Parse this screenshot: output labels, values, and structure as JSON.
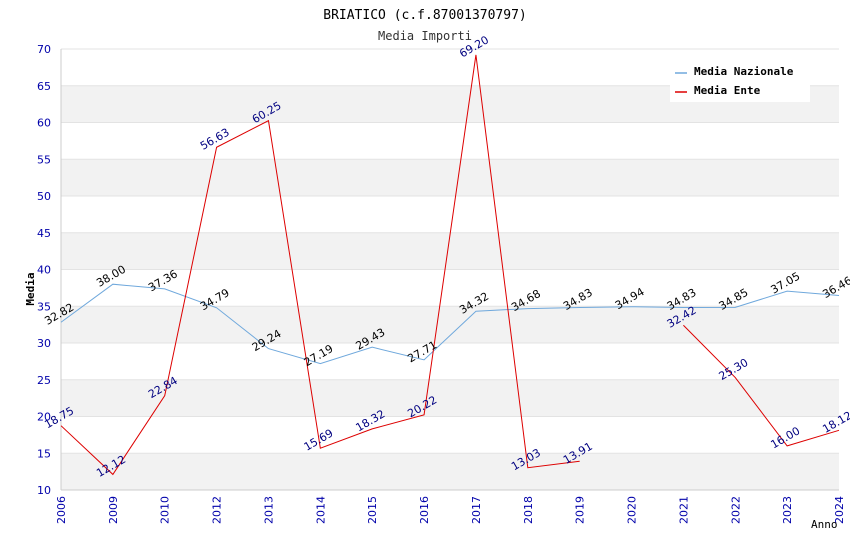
{
  "chart_data": {
    "type": "line",
    "title": "BRIATICO (c.f.87001370797)",
    "subtitle": "Media Importi",
    "xlabel": "Anno",
    "ylabel": "Media",
    "ylim": [
      10,
      70
    ],
    "yticks": [
      10,
      15,
      20,
      25,
      30,
      35,
      40,
      45,
      50,
      55,
      60,
      65,
      70
    ],
    "grid": true,
    "legend_position": "top-right",
    "categories": [
      "2006",
      "2009",
      "2010",
      "2012",
      "2013",
      "2014",
      "2015",
      "2016",
      "2017",
      "2018",
      "2019",
      "2020",
      "2021",
      "2022",
      "2023",
      "2024"
    ],
    "series": [
      {
        "name": "Media Nazionale",
        "color": "#6fa8dc",
        "label_color": "#000000",
        "values": [
          32.82,
          38.0,
          37.36,
          34.79,
          29.24,
          27.19,
          29.43,
          27.71,
          34.32,
          34.68,
          34.83,
          34.94,
          34.83,
          34.85,
          37.05,
          36.46
        ],
        "labels": [
          "32.82",
          "38.00",
          "37.36",
          "34.79",
          "29.24",
          "27.19",
          "29.43",
          "27.71",
          "34.32",
          "34.68",
          "34.83",
          "34.94",
          "34.83",
          "34.85",
          "37.05",
          "36.46"
        ]
      },
      {
        "name": "Media Ente",
        "color": "#dd0000",
        "label_color": "#000080",
        "values": [
          18.75,
          12.12,
          22.84,
          56.63,
          60.25,
          15.69,
          18.32,
          20.22,
          69.2,
          13.03,
          13.91,
          null,
          32.42,
          25.3,
          16.0,
          18.12
        ],
        "labels": [
          "18.75",
          "12.12",
          "22.84",
          "56.63",
          "60.25",
          "15.69",
          "18.32",
          "20.22",
          "69.20",
          "13.03",
          "13.91",
          null,
          "32.42",
          "25.30",
          "16.00",
          "18.12"
        ]
      }
    ]
  }
}
